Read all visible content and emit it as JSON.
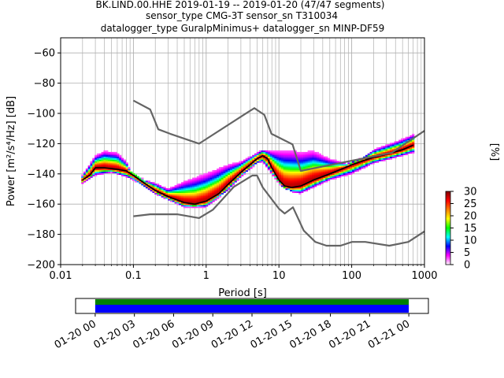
{
  "title": {
    "line1": "BK.LIND.00.HHE   2019-01-19 -- 2019-01-20  (47/47 segments)",
    "line2": "sensor_type CMG-3T sensor_sn T310034",
    "line3": "datalogger_type GuralpMinimus+ datalogger_sn MINP-DF59"
  },
  "chart_data": {
    "type": "heatmap",
    "x_scale": "log",
    "xlabel": "Period [s]",
    "ylabel": "Power [m²/s⁴/Hz] [dB]",
    "xlim": [
      0.01,
      1000
    ],
    "ylim": [
      -200,
      -50
    ],
    "x_ticks": [
      0.01,
      0.1,
      1,
      10,
      100,
      1000
    ],
    "x_tick_labels": [
      "0.01",
      "0.1",
      "1",
      "10",
      "100",
      "1000"
    ],
    "y_ticks": [
      -60,
      -80,
      -100,
      -120,
      -140,
      -160,
      -180,
      -200
    ],
    "y_tick_labels": [
      "−60",
      "−80",
      "−100",
      "−120",
      "−140",
      "−160",
      "−180",
      "−200"
    ],
    "grid": true,
    "colorbar": {
      "label": "[%]",
      "min": 0,
      "max": 30,
      "ticks": [
        0,
        5,
        10,
        15,
        20,
        25,
        30
      ],
      "colors": [
        "#ffffff",
        "#ff00ff",
        "#0000ff",
        "#00ffff",
        "#00ff00",
        "#ffff00",
        "#ff8000",
        "#ff0000",
        "#800000"
      ]
    },
    "series": [
      {
        "role": "mode",
        "color": "#000000",
        "x": [
          0.02,
          0.025,
          0.03,
          0.04,
          0.06,
          0.08,
          0.1,
          0.15,
          0.2,
          0.3,
          0.5,
          0.7,
          1,
          1.5,
          2,
          3,
          4,
          5,
          6,
          7,
          8,
          10,
          12,
          15,
          20,
          30,
          50,
          80,
          100,
          150,
          200,
          300,
          500,
          700
        ],
        "y": [
          -144,
          -141,
          -136,
          -136,
          -137,
          -138,
          -141,
          -147,
          -151,
          -155,
          -159,
          -160,
          -158,
          -153,
          -147,
          -139,
          -134,
          -130,
          -128,
          -130,
          -136,
          -144,
          -148,
          -149,
          -148,
          -144,
          -140,
          -136,
          -134,
          -131,
          -129,
          -127,
          -124,
          -121
        ]
      },
      {
        "role": "noise_model_high",
        "color": "#646464",
        "x": [
          0.1,
          0.17,
          0.22,
          0.32,
          0.8,
          3.8,
          4.6,
          6.3,
          7.9,
          15.4,
          20,
          354.8,
          1000
        ],
        "y": [
          -91.5,
          -97.4,
          -110.5,
          -113.5,
          -120,
          -99,
          -96.5,
          -101,
          -113.5,
          -120.5,
          -138,
          -126,
          -111.5
        ]
      },
      {
        "role": "noise_model_low",
        "color": "#646464",
        "x": [
          0.1,
          0.17,
          0.4,
          0.8,
          1.24,
          2.4,
          4.3,
          5,
          6,
          10,
          12,
          15.6,
          21.9,
          31.6,
          45,
          70,
          101,
          154,
          328,
          600,
          1000
        ],
        "y": [
          -168,
          -166.7,
          -166.7,
          -169.2,
          -163.7,
          -148.6,
          -141.1,
          -141.1,
          -149,
          -163,
          -166.2,
          -162.1,
          -177.5,
          -185,
          -187.5,
          -187.5,
          -185,
          -185,
          -187.5,
          -185,
          -178
        ]
      },
      {
        "role": "spread_upper",
        "color": "#c000ff",
        "x": [
          0.02,
          0.03,
          0.04,
          0.06,
          0.08,
          0.1,
          0.2,
          0.3,
          0.5,
          1,
          2,
          3,
          5,
          6,
          8,
          10,
          15,
          20,
          30,
          50,
          100,
          200,
          500,
          700
        ],
        "y": [
          -141,
          -128,
          -125,
          -126,
          -132,
          -142,
          -146,
          -150,
          -145,
          -140,
          -134,
          -132,
          -126,
          -124,
          -125,
          -125,
          -125,
          -126,
          -125,
          -130,
          -134,
          -124,
          -117,
          -114
        ]
      },
      {
        "role": "spread_lower",
        "color": "#c000ff",
        "x": [
          0.02,
          0.03,
          0.05,
          0.08,
          0.1,
          0.2,
          0.5,
          1,
          2,
          3,
          5,
          6,
          8,
          10,
          15,
          20,
          30,
          50,
          100,
          200,
          500,
          700
        ],
        "y": [
          -146,
          -141,
          -139,
          -142,
          -144,
          -153,
          -162,
          -162,
          -151,
          -142,
          -133,
          -132,
          -140,
          -146,
          -152,
          -153,
          -149,
          -144,
          -140,
          -133,
          -128,
          -126
        ]
      }
    ]
  },
  "time_axis": {
    "tick_labels": [
      "01-20 00",
      "01-20 03",
      "01-20 06",
      "01-20 09",
      "01-20 12",
      "01-20 15",
      "01-20 18",
      "01-20 21",
      "01-21 00"
    ],
    "range": [
      "01-19 22:30",
      "01-21 01:30"
    ],
    "coverage": [
      "01-20 00:00",
      "01-21 00:00"
    ],
    "coverage_colors": [
      "#008000",
      "#0000ff"
    ]
  }
}
